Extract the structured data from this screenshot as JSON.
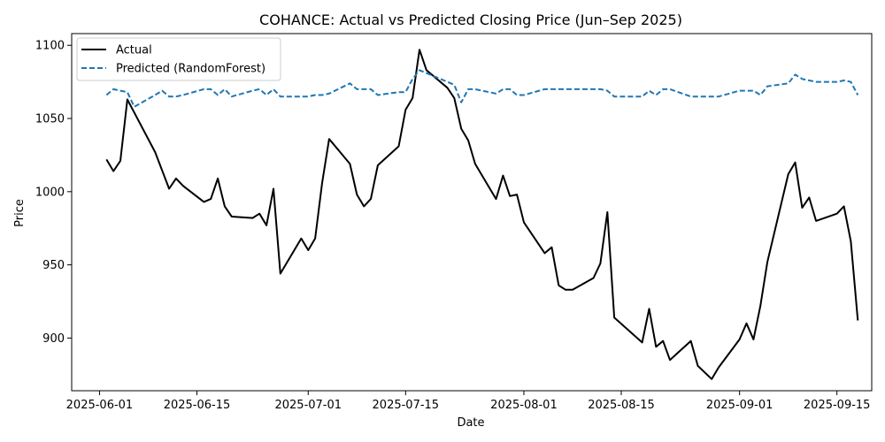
{
  "chart_data": {
    "type": "line",
    "title": "COHANCE: Actual vs Predicted Closing Price (Jun–Sep 2025)",
    "xlabel": "Date",
    "ylabel": "Price",
    "x_axis_type": "date",
    "xlim": [
      "2025-05-28",
      "2025-09-20"
    ],
    "ylim": [
      864,
      1108
    ],
    "x_ticks": [
      "2025-06-01",
      "2025-06-15",
      "2025-07-01",
      "2025-07-15",
      "2025-08-01",
      "2025-08-15",
      "2025-09-01",
      "2025-09-15"
    ],
    "y_ticks": [
      900,
      950,
      1000,
      1050,
      1100
    ],
    "grid": false,
    "legend_position": "top-left",
    "series": [
      {
        "name": "Actual",
        "color": "#000000",
        "style": "solid",
        "x": [
          "2025-06-02",
          "2025-06-03",
          "2025-06-04",
          "2025-06-05",
          "2025-06-09",
          "2025-06-11",
          "2025-06-12",
          "2025-06-13",
          "2025-06-16",
          "2025-06-17",
          "2025-06-18",
          "2025-06-19",
          "2025-06-20",
          "2025-06-23",
          "2025-06-24",
          "2025-06-25",
          "2025-06-26",
          "2025-06-27",
          "2025-06-30",
          "2025-07-01",
          "2025-07-02",
          "2025-07-03",
          "2025-07-04",
          "2025-07-07",
          "2025-07-08",
          "2025-07-09",
          "2025-07-10",
          "2025-07-11",
          "2025-07-14",
          "2025-07-15",
          "2025-07-16",
          "2025-07-17",
          "2025-07-18",
          "2025-07-21",
          "2025-07-22",
          "2025-07-23",
          "2025-07-24",
          "2025-07-25",
          "2025-07-28",
          "2025-07-29",
          "2025-07-30",
          "2025-07-31",
          "2025-08-01",
          "2025-08-04",
          "2025-08-05",
          "2025-08-06",
          "2025-08-07",
          "2025-08-08",
          "2025-08-11",
          "2025-08-12",
          "2025-08-13",
          "2025-08-14",
          "2025-08-18",
          "2025-08-19",
          "2025-08-20",
          "2025-08-21",
          "2025-08-22",
          "2025-08-25",
          "2025-08-26",
          "2025-08-28",
          "2025-08-29",
          "2025-09-01",
          "2025-09-02",
          "2025-09-03",
          "2025-09-04",
          "2025-09-05",
          "2025-09-08",
          "2025-09-09",
          "2025-09-10",
          "2025-09-11",
          "2025-09-12",
          "2025-09-15",
          "2025-09-16",
          "2025-09-17",
          "2025-09-18"
        ],
        "values": [
          1022,
          1014,
          1021,
          1063,
          1027,
          1002,
          1009,
          1004,
          993,
          995,
          1009,
          990,
          983,
          982,
          985,
          977,
          1002,
          944,
          968,
          960,
          968,
          1006,
          1036,
          1019,
          998,
          990,
          995,
          1018,
          1031,
          1056,
          1064,
          1097,
          1083,
          1071,
          1064,
          1043,
          1035,
          1019,
          995,
          1011,
          997,
          998,
          979,
          958,
          962,
          936,
          933,
          933,
          941,
          951,
          986,
          914,
          897,
          920,
          894,
          898,
          885,
          898,
          881,
          872,
          880,
          899,
          910,
          899,
          922,
          952,
          1012,
          1020,
          989,
          996,
          980,
          985,
          990,
          966,
          912
        ]
      },
      {
        "name": "Predicted (RandomForest)",
        "color": "#1f77b4",
        "style": "dashed",
        "x": [
          "2025-06-02",
          "2025-06-03",
          "2025-06-04",
          "2025-06-05",
          "2025-06-06",
          "2025-06-09",
          "2025-06-10",
          "2025-06-11",
          "2025-06-12",
          "2025-06-13",
          "2025-06-16",
          "2025-06-17",
          "2025-06-18",
          "2025-06-19",
          "2025-06-20",
          "2025-06-23",
          "2025-06-24",
          "2025-06-25",
          "2025-06-26",
          "2025-06-27",
          "2025-06-30",
          "2025-07-01",
          "2025-07-02",
          "2025-07-03",
          "2025-07-04",
          "2025-07-07",
          "2025-07-08",
          "2025-07-09",
          "2025-07-10",
          "2025-07-11",
          "2025-07-14",
          "2025-07-15",
          "2025-07-16",
          "2025-07-17",
          "2025-07-18",
          "2025-07-21",
          "2025-07-22",
          "2025-07-23",
          "2025-07-24",
          "2025-07-25",
          "2025-07-28",
          "2025-07-29",
          "2025-07-30",
          "2025-07-31",
          "2025-08-01",
          "2025-08-04",
          "2025-08-05",
          "2025-08-06",
          "2025-08-07",
          "2025-08-08",
          "2025-08-11",
          "2025-08-12",
          "2025-08-13",
          "2025-08-14",
          "2025-08-18",
          "2025-08-19",
          "2025-08-20",
          "2025-08-21",
          "2025-08-22",
          "2025-08-25",
          "2025-08-26",
          "2025-08-28",
          "2025-08-29",
          "2025-09-01",
          "2025-09-02",
          "2025-09-03",
          "2025-09-04",
          "2025-09-05",
          "2025-09-08",
          "2025-09-09",
          "2025-09-10",
          "2025-09-11",
          "2025-09-12",
          "2025-09-15",
          "2025-09-16",
          "2025-09-17",
          "2025-09-18"
        ],
        "values": [
          1066,
          1070,
          1069,
          1068,
          1058,
          1066,
          1069,
          1065,
          1065,
          1066,
          1070,
          1070,
          1066,
          1070,
          1065,
          1069,
          1070,
          1066,
          1070,
          1065,
          1065,
          1065,
          1066,
          1066,
          1067,
          1074,
          1070,
          1070,
          1070,
          1066,
          1068,
          1068,
          1077,
          1083,
          1081,
          1075,
          1073,
          1061,
          1070,
          1070,
          1067,
          1070,
          1070,
          1066,
          1066,
          1070,
          1070,
          1070,
          1070,
          1070,
          1070,
          1070,
          1069,
          1065,
          1065,
          1069,
          1066,
          1070,
          1070,
          1065,
          1065,
          1065,
          1065,
          1069,
          1069,
          1069,
          1066,
          1072,
          1074,
          1080,
          1077,
          1076,
          1075,
          1075,
          1076,
          1075,
          1066
        ]
      }
    ]
  }
}
